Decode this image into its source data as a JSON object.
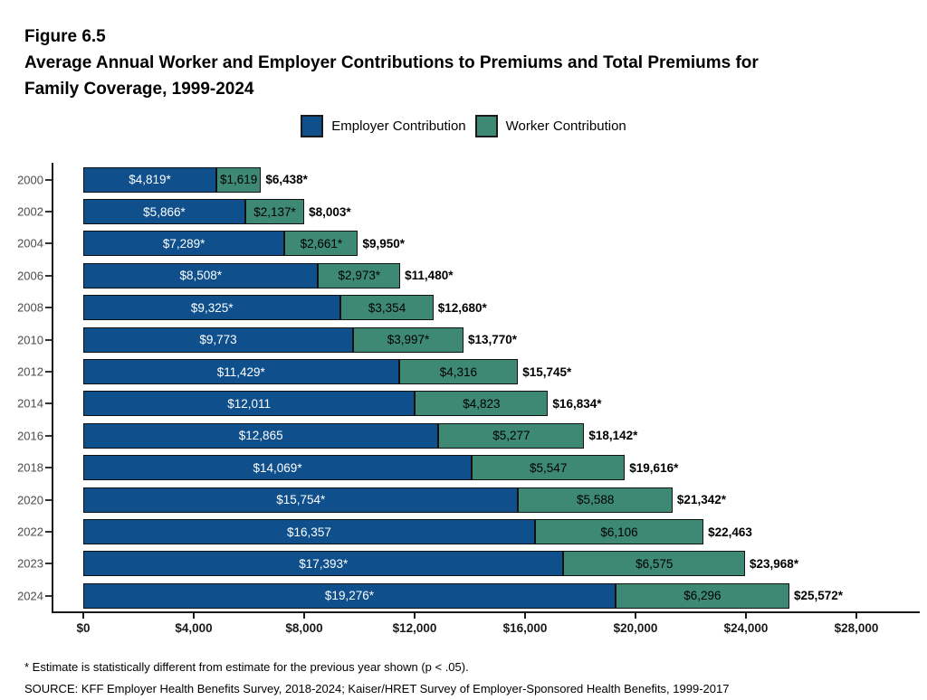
{
  "figure": {
    "number": "Figure 6.5",
    "title_line1": "Average Annual Worker and Employer Contributions to Premiums and Total Premiums for",
    "title_line2": "Family Coverage, 1999-2024"
  },
  "legend": [
    {
      "label": "Employer Contribution",
      "color": "#0E4F8C"
    },
    {
      "label": "Worker Contribution",
      "color": "#3D8973"
    }
  ],
  "chart_data": {
    "type": "bar",
    "orientation": "horizontal",
    "stacked": true,
    "title": "Average Annual Worker and Employer Contributions to Premiums and Total Premiums for Family Coverage, 1999-2024",
    "xlabel": "",
    "ylabel": "",
    "legend_position": "top",
    "grid": false,
    "categories": [
      "2000",
      "2002",
      "2004",
      "2006",
      "2008",
      "2010",
      "2012",
      "2014",
      "2016",
      "2018",
      "2020",
      "2022",
      "2023",
      "2024"
    ],
    "series": [
      {
        "name": "Employer Contribution",
        "color": "#0E4F8C",
        "label_color": "#ffffff",
        "values": [
          4819,
          5866,
          7289,
          8508,
          9325,
          9773,
          11429,
          12011,
          12865,
          14069,
          15754,
          16357,
          17393,
          19276
        ],
        "labels": [
          "$4,819*",
          "$5,866*",
          "$7,289*",
          "$8,508*",
          "$9,325*",
          "$9,773",
          "$11,429*",
          "$12,011",
          "$12,865",
          "$14,069*",
          "$15,754*",
          "$16,357",
          "$17,393*",
          "$19,276*"
        ]
      },
      {
        "name": "Worker Contribution",
        "color": "#3D8973",
        "label_color": "#000000",
        "values": [
          1619,
          2137,
          2661,
          2973,
          3354,
          3997,
          4316,
          4823,
          5277,
          5547,
          5588,
          6106,
          6575,
          6296
        ],
        "labels": [
          "$1,619",
          "$2,137*",
          "$2,661*",
          "$2,973*",
          "$3,354",
          "$3,997*",
          "$4,316",
          "$4,823",
          "$5,277",
          "$5,547",
          "$5,588",
          "$6,106",
          "$6,575",
          "$6,296"
        ]
      }
    ],
    "totals": [
      6438,
      8003,
      9950,
      11480,
      12680,
      13770,
      15745,
      16834,
      18142,
      19616,
      21342,
      22463,
      23968,
      25572
    ],
    "total_labels": [
      "$6,438*",
      "$8,003*",
      "$9,950*",
      "$11,480*",
      "$12,680*",
      "$13,770*",
      "$15,745*",
      "$16,834*",
      "$18,142*",
      "$19,616*",
      "$21,342*",
      "$22,463",
      "$23,968*",
      "$25,572*"
    ],
    "xlim": [
      0,
      28000
    ],
    "x_tick_values": [
      0,
      4000,
      8000,
      12000,
      16000,
      20000,
      24000,
      28000
    ],
    "x_tick_labels": [
      "$0",
      "$4,000",
      "$8,000",
      "$12,000",
      "$16,000",
      "$20,000",
      "$24,000",
      "$28,000"
    ]
  },
  "footnotes": {
    "asterisk": "* Estimate is statistically different from estimate for the previous year shown (p < .05).",
    "source": "SOURCE: KFF Employer Health Benefits Survey, 2018-2024; Kaiser/HRET Survey of Employer-Sponsored Health Benefits, 1999-2017"
  }
}
